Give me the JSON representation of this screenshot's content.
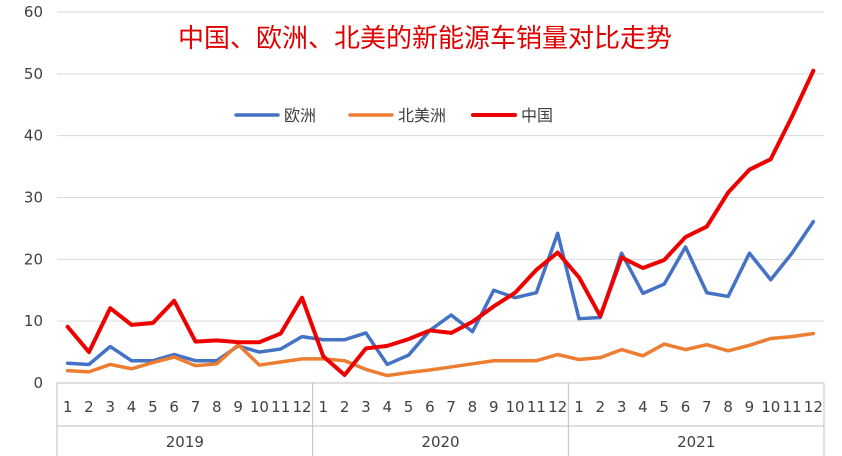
{
  "chart_data": {
    "type": "line",
    "title": "中国、欧洲、北美的新能源车销量对比走势",
    "xlabel": "",
    "ylabel": "",
    "ylim": [
      0,
      60
    ],
    "yticks": [
      "0",
      "10",
      "20",
      "30",
      "40",
      "50",
      "60"
    ],
    "grid": "horizontal",
    "legend_position": "upper-center",
    "groups": [
      {
        "label": "2019",
        "months": [
          "1",
          "2",
          "3",
          "4",
          "5",
          "6",
          "7",
          "8",
          "9",
          "10",
          "11",
          "12"
        ]
      },
      {
        "label": "2020",
        "months": [
          "1",
          "2",
          "3",
          "4",
          "5",
          "6",
          "7",
          "8",
          "9",
          "10",
          "11",
          "12"
        ]
      },
      {
        "label": "2021",
        "months": [
          "1",
          "2",
          "3",
          "4",
          "5",
          "6",
          "7",
          "8",
          "9",
          "10",
          "11",
          "12"
        ]
      }
    ],
    "series": [
      {
        "name": "欧洲",
        "color": "#4472c4",
        "values": [
          3.2,
          3.0,
          5.9,
          3.6,
          3.6,
          4.6,
          3.6,
          3.6,
          6.0,
          5.0,
          5.5,
          7.5,
          7.0,
          7.0,
          8.1,
          3.0,
          4.5,
          8.5,
          11.0,
          8.3,
          15.0,
          13.8,
          14.6,
          24.2,
          10.4,
          10.6,
          21.0,
          14.5,
          16.0,
          22.0,
          14.6,
          14.0,
          21.0,
          16.7,
          21.0,
          26.1
        ]
      },
      {
        "name": "北美洲",
        "color": "#ed7d31",
        "values": [
          2.0,
          1.8,
          3.0,
          2.3,
          3.3,
          4.2,
          2.8,
          3.1,
          6.2,
          2.9,
          3.4,
          3.9,
          3.9,
          3.6,
          2.2,
          1.2,
          1.7,
          2.1,
          2.6,
          3.1,
          3.6,
          3.6,
          3.6,
          4.6,
          3.8,
          4.1,
          5.4,
          4.4,
          6.3,
          5.4,
          6.2,
          5.2,
          6.1,
          7.2,
          7.5,
          8.0
        ]
      },
      {
        "name": "中国",
        "color": "#ee0000",
        "values": [
          9.1,
          5.0,
          12.1,
          9.4,
          9.7,
          13.3,
          6.7,
          6.9,
          6.6,
          6.6,
          8.0,
          13.8,
          4.3,
          1.3,
          5.6,
          6.0,
          7.1,
          8.5,
          8.1,
          9.9,
          12.4,
          14.6,
          18.3,
          21.1,
          17.1,
          10.8,
          20.3,
          18.6,
          19.9,
          23.6,
          25.3,
          30.8,
          34.5,
          36.2,
          43.1,
          50.5
        ]
      }
    ]
  }
}
